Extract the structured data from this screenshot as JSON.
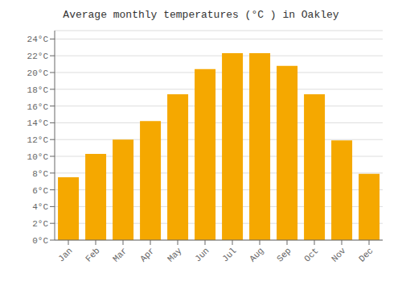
{
  "chart_data": {
    "type": "bar",
    "title": "Average monthly temperatures (°C ) in Oakley",
    "categories": [
      "Jan",
      "Feb",
      "Mar",
      "Apr",
      "May",
      "Jun",
      "Jul",
      "Aug",
      "Sep",
      "Oct",
      "Nov",
      "Dec"
    ],
    "values": [
      7.5,
      10.3,
      12.0,
      14.2,
      17.4,
      20.4,
      22.3,
      22.3,
      20.8,
      17.4,
      11.9,
      7.9
    ],
    "color": "#F5A800",
    "ylim": [
      0,
      25
    ],
    "yticks": [
      {
        "value": 0,
        "label": "0°C"
      },
      {
        "value": 2,
        "label": "2°C"
      },
      {
        "value": 4,
        "label": "4°C"
      },
      {
        "value": 6,
        "label": "6°C"
      },
      {
        "value": 8,
        "label": "8°C"
      },
      {
        "value": 10,
        "label": "10°C"
      },
      {
        "value": 12,
        "label": "12°C"
      },
      {
        "value": 14,
        "label": "14°C"
      },
      {
        "value": 16,
        "label": "16°C"
      },
      {
        "value": 18,
        "label": "18°C"
      },
      {
        "value": 20,
        "label": "20°C"
      },
      {
        "value": 22,
        "label": "22°C"
      },
      {
        "value": 24,
        "label": "24°C"
      }
    ],
    "grid": true
  }
}
